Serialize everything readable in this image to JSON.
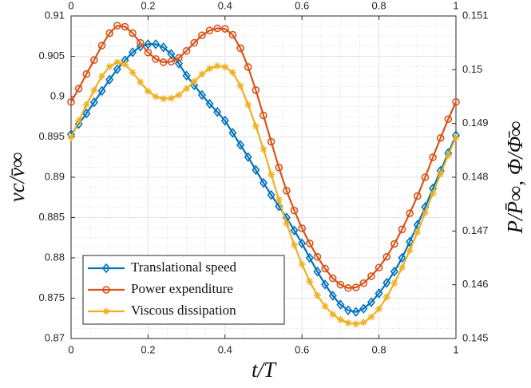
{
  "chart_data": {
    "type": "line",
    "xlabel": "t/T",
    "ylabel": "vc/v̄∞",
    "y2label": "P/P̄∞, Φ/Φ̄∞",
    "x": [
      0,
      0.02,
      0.04,
      0.06,
      0.08,
      0.1,
      0.12,
      0.14,
      0.16,
      0.18,
      0.2,
      0.22,
      0.24,
      0.26,
      0.28,
      0.3,
      0.32,
      0.34,
      0.36,
      0.38,
      0.4,
      0.42,
      0.44,
      0.46,
      0.48,
      0.5,
      0.52,
      0.54,
      0.56,
      0.58,
      0.6,
      0.62,
      0.64,
      0.66,
      0.68,
      0.7,
      0.72,
      0.74,
      0.76,
      0.78,
      0.8,
      0.82,
      0.84,
      0.86,
      0.88,
      0.9,
      0.92,
      0.94,
      0.96,
      0.98,
      1
    ],
    "series": [
      {
        "name": "Translational speed",
        "color": "#0072BD",
        "marker": "diamond",
        "axis": "y",
        "values": [
          0.8953,
          0.8966,
          0.8979,
          0.8993,
          0.9007,
          0.9021,
          0.9034,
          0.9045,
          0.9055,
          0.9062,
          0.9065,
          0.9065,
          0.9061,
          0.9053,
          0.9041,
          0.9026,
          0.9014,
          0.9002,
          0.8991,
          0.8981,
          0.897,
          0.8955,
          0.894,
          0.8925,
          0.8909,
          0.8893,
          0.8878,
          0.8864,
          0.885,
          0.8834,
          0.8818,
          0.88,
          0.8783,
          0.8767,
          0.8753,
          0.8742,
          0.8735,
          0.8733,
          0.8737,
          0.8745,
          0.8756,
          0.8769,
          0.8783,
          0.88,
          0.882,
          0.8841,
          0.8863,
          0.8886,
          0.8908,
          0.893,
          0.8952
        ]
      },
      {
        "name": "Power expenditure",
        "color": "#D95319",
        "marker": "circle",
        "axis": "y2",
        "values": [
          0.1494,
          0.14965,
          0.14992,
          0.15018,
          0.15045,
          0.15068,
          0.15082,
          0.1508,
          0.15068,
          0.1505,
          0.15032,
          0.1502,
          0.15014,
          0.15015,
          0.15022,
          0.15035,
          0.1505,
          0.15064,
          0.15073,
          0.15077,
          0.15076,
          0.15065,
          0.1504,
          0.15005,
          0.14962,
          0.14915,
          0.14866,
          0.14818,
          0.14775,
          0.14738,
          0.14705,
          0.14677,
          0.14652,
          0.1463,
          0.14612,
          0.146,
          0.14594,
          0.14595,
          0.14603,
          0.14616,
          0.14632,
          0.14652,
          0.14676,
          0.14703,
          0.14733,
          0.14765,
          0.148,
          0.14837,
          0.14873,
          0.14908,
          0.1494
        ]
      },
      {
        "name": "Viscous dissipation",
        "color": "#EDB120",
        "marker": "asterisk",
        "axis": "y2",
        "values": [
          0.14874,
          0.14905,
          0.14935,
          0.14962,
          0.14988,
          0.15006,
          0.15014,
          0.1501,
          0.14995,
          0.14977,
          0.1496,
          0.1495,
          0.14946,
          0.14947,
          0.14953,
          0.14965,
          0.14978,
          0.14992,
          0.15002,
          0.15007,
          0.15005,
          0.14995,
          0.1497,
          0.14935,
          0.14895,
          0.14852,
          0.14805,
          0.14758,
          0.14714,
          0.14674,
          0.14638,
          0.14606,
          0.1458,
          0.1456,
          0.14545,
          0.14535,
          0.14529,
          0.14527,
          0.1453,
          0.1454,
          0.14555,
          0.14577,
          0.14603,
          0.14632,
          0.14664,
          0.14698,
          0.14734,
          0.1477,
          0.14806,
          0.14841,
          0.14874
        ]
      }
    ],
    "xlim": [
      0,
      1
    ],
    "xticks": [
      0,
      0.2,
      0.4,
      0.6,
      0.8,
      1
    ],
    "ylim": [
      0.87,
      0.91
    ],
    "yticks": [
      0.87,
      0.875,
      0.88,
      0.885,
      0.89,
      0.895,
      0.9,
      0.905,
      0.91
    ],
    "y2lim": [
      0.145,
      0.151
    ],
    "y2ticks": [
      0.145,
      0.146,
      0.147,
      0.148,
      0.149,
      0.15,
      0.151
    ],
    "grid": true,
    "minor_grid": true,
    "legend": "lower left"
  }
}
